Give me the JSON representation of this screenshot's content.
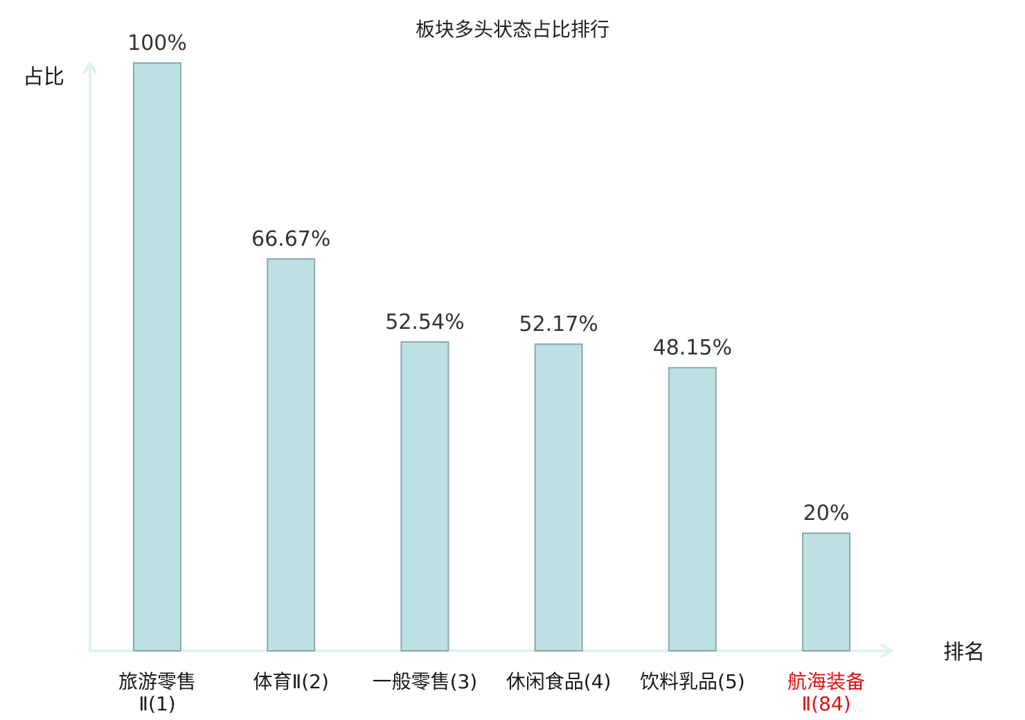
{
  "chart_data": {
    "type": "bar",
    "title": "板块多头状态占比排行",
    "xlabel": "排名",
    "ylabel": "占比",
    "categories": [
      {
        "line1": "旅游零售",
        "line2": "Ⅱ(1)",
        "highlight": false
      },
      {
        "line1": "体育Ⅱ(2)",
        "line2": "",
        "highlight": false
      },
      {
        "line1": "一般零售(3)",
        "line2": "",
        "highlight": false
      },
      {
        "line1": "休闲食品(4)",
        "line2": "",
        "highlight": false
      },
      {
        "line1": "饮料乳品(5)",
        "line2": "",
        "highlight": false
      },
      {
        "line1": "航海装备",
        "line2": "Ⅱ(84)",
        "highlight": true
      }
    ],
    "values": [
      100,
      66.67,
      52.54,
      52.17,
      48.15,
      20
    ],
    "value_labels": [
      "100%",
      "66.67%",
      "52.54%",
      "52.17%",
      "48.15%",
      "20%"
    ],
    "ylim": [
      0,
      100
    ],
    "grid": false,
    "colors": {
      "bar_fill": "#bde0e2",
      "bar_stroke": "#8aa8ab",
      "axis": "#e0f2ef",
      "label_normal": "#1a1a1a",
      "label_highlight": "#e01010"
    }
  }
}
